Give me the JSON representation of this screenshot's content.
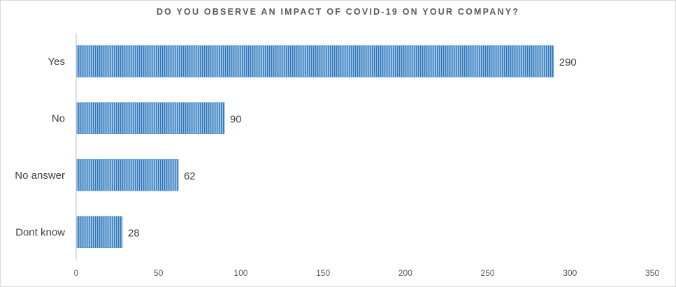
{
  "chart_data": {
    "type": "bar",
    "orientation": "horizontal",
    "title": "DO YOU OBSERVE AN IMPACT OF COVID-19 ON YOUR COMPANY?",
    "categories": [
      "Yes",
      "No",
      "No answer",
      "Dont know"
    ],
    "values": [
      290,
      90,
      62,
      28
    ],
    "xlim": [
      0,
      350
    ],
    "xticks": [
      0,
      50,
      100,
      150,
      200,
      250,
      300,
      350
    ],
    "xlabel": "",
    "ylabel": "",
    "grid": false,
    "legend": "none",
    "colors": {
      "bar_fill": "#9dc3e6",
      "bar_hatch": "#2e75b6",
      "bar_edge": "#5b9bd5",
      "axis": "#bfbfbf"
    }
  }
}
